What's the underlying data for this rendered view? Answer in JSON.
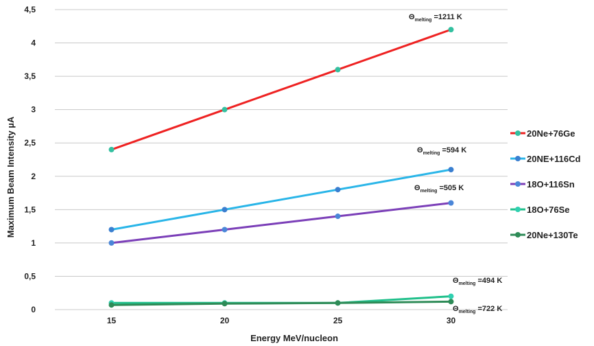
{
  "chart_data": {
    "type": "line",
    "xlabel": "Energy MeV/nucleon",
    "ylabel": "Maximum Beam Intensity µA",
    "x": [
      15,
      20,
      25,
      30
    ],
    "xticks": [
      "15",
      "20",
      "25",
      "30"
    ],
    "ylim": [
      0,
      4.5
    ],
    "yticks": [
      "0",
      "0,5",
      "1",
      "1,5",
      "2",
      "2,5",
      "3",
      "3,5",
      "4",
      "4,5"
    ],
    "grid": "horizontal",
    "legend_position": "right",
    "series": [
      {
        "name": "20Ne+76Ge",
        "values": [
          2.4,
          3.0,
          3.6,
          4.2
        ],
        "color": "#ee2222",
        "marker_color": "#33c0a0"
      },
      {
        "name": "20NE+116Cd",
        "values": [
          1.2,
          1.5,
          1.8,
          2.1
        ],
        "color": "#29b5e8",
        "marker_color": "#3a7fd0"
      },
      {
        "name": "18O+116Sn",
        "values": [
          1.0,
          1.2,
          1.4,
          1.6
        ],
        "color": "#7b3fb8",
        "marker_color": "#4a86d8"
      },
      {
        "name": "18O+76Se",
        "values": [
          0.1,
          0.1,
          0.1,
          0.2
        ],
        "color": "#1fbf8a",
        "marker_color": "#2fd0b0"
      },
      {
        "name": "20Ne+130Te",
        "values": [
          0.07,
          0.09,
          0.1,
          0.12
        ],
        "color": "#2e8b57",
        "marker_color": "#2e8b57"
      }
    ],
    "annotations": [
      {
        "theta": "Θ",
        "sub": "melting",
        "value": "=1211 K",
        "x": 30,
        "y": 4.2
      },
      {
        "theta": "Θ",
        "sub": "melting",
        "value": "=594 K",
        "x": 30,
        "y": 2.1
      },
      {
        "theta": "Θ",
        "sub": "melting",
        "value": "=505 K",
        "x": 30,
        "y": 1.6
      },
      {
        "theta": "Θ",
        "sub": "melting",
        "value": "=494 K",
        "x": 30,
        "y": 0.2
      },
      {
        "theta": "Θ",
        "sub": "melting",
        "value": "=722 K",
        "x": 30,
        "y": 0.12
      }
    ]
  }
}
